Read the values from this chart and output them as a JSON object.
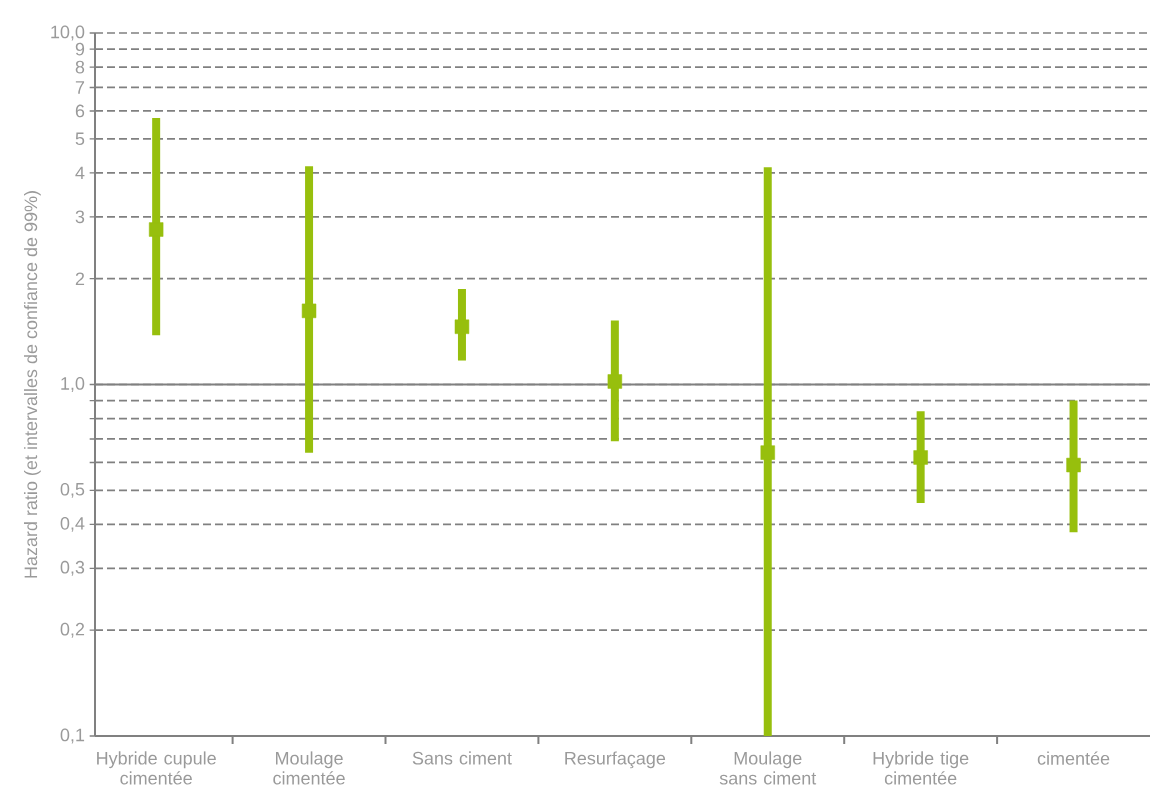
{
  "chart_data": {
    "type": "scatter",
    "ylabel": "Hazard ratio (et intervalles de confiance de 99%)",
    "categories": [
      "Hybride cupule cimentée",
      "Moulage cimentée",
      "Sans ciment",
      "Resurfaçage",
      "Moulage sans ciment",
      "Hybride tige cimentée",
      "cimentée"
    ],
    "series": [
      {
        "color": "#97bf0d",
        "values": [
          2.76,
          1.62,
          1.46,
          1.02,
          0.64,
          0.62,
          0.59
        ],
        "errors": [
          [
            1.38,
            5.73
          ],
          [
            0.64,
            4.18
          ],
          [
            1.17,
            1.87
          ],
          [
            0.69,
            1.52
          ],
          [
            0.1,
            4.15
          ],
          [
            0.46,
            0.84
          ],
          [
            0.38,
            0.9
          ]
        ]
      }
    ],
    "ylim": [
      0.1,
      10
    ],
    "yticks": [
      {
        "value": 0.1,
        "label": "0,1"
      },
      {
        "value": 0.2,
        "label": "0,2"
      },
      {
        "value": 0.3,
        "label": "0,3"
      },
      {
        "value": 0.4,
        "label": "0,4"
      },
      {
        "value": 0.5,
        "label": "0,5"
      },
      {
        "value": 0.6,
        "label": null
      },
      {
        "value": 0.7,
        "label": null
      },
      {
        "value": 0.8,
        "label": null
      },
      {
        "value": 0.9,
        "label": null
      },
      {
        "value": 1,
        "label": "1,0"
      },
      2,
      3,
      4,
      5,
      6,
      7,
      8,
      9,
      {
        "value": 10,
        "label": "10,0"
      }
    ],
    "log": true,
    "grid": "y",
    "marker": "square",
    "ref_lines": [
      {
        "axis": "y",
        "value": 1
      }
    ]
  }
}
